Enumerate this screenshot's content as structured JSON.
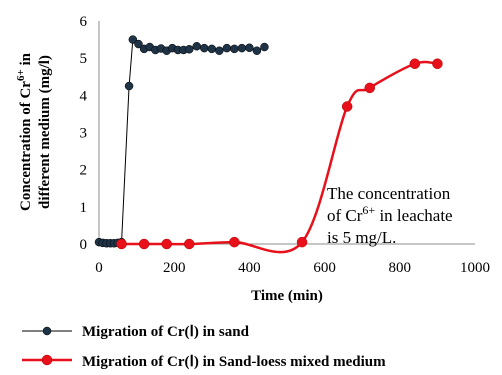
{
  "chart_data": {
    "type": "line",
    "xlabel": "Time (min)",
    "ylabel_line1": "Concentration of Cr",
    "ylabel_sup": "6+",
    "ylabel_line1_end": " in",
    "ylabel_line2": "different medium (mg/l)",
    "xlim": [
      0,
      1000
    ],
    "ylim": [
      0,
      6
    ],
    "x_ticks": [
      "0",
      "200",
      "400",
      "600",
      "800",
      "1000"
    ],
    "y_ticks": [
      "0",
      "1",
      "2",
      "3",
      "4",
      "5",
      "6"
    ],
    "grid": false,
    "legend_position": "bottom",
    "annotation": {
      "line1": "The concentration",
      "line2_pre": "of Cr",
      "line2_sup": "6+",
      "line2_post": " in leachate",
      "line3": "is 5 mg/L."
    },
    "series": [
      {
        "name": "Migration of Cr(Ⅰ) in sand",
        "color": "#000000",
        "marker_color": "#1f3347",
        "x": [
          0,
          10,
          20,
          30,
          40,
          50,
          60,
          80,
          90,
          105,
          120,
          135,
          150,
          165,
          180,
          195,
          210,
          225,
          240,
          260,
          280,
          300,
          320,
          340,
          360,
          380,
          400,
          420,
          440
        ],
        "y": [
          0.05,
          0.03,
          0.02,
          0.02,
          0.02,
          0.03,
          0.05,
          4.25,
          5.5,
          5.38,
          5.25,
          5.3,
          5.22,
          5.26,
          5.2,
          5.27,
          5.22,
          5.22,
          5.24,
          5.32,
          5.27,
          5.25,
          5.2,
          5.27,
          5.25,
          5.27,
          5.28,
          5.2,
          5.3
        ]
      },
      {
        "name": "Migration of Cr(Ⅰ) in Sand-loess mixed medium",
        "color": "#e8101a",
        "marker_color": "#e8101a",
        "x": [
          60,
          120,
          180,
          240,
          360,
          540,
          660,
          720,
          840,
          900
        ],
        "y": [
          0.0,
          0.0,
          0.0,
          0.0,
          0.05,
          0.05,
          3.7,
          4.2,
          4.85,
          4.85
        ]
      }
    ]
  }
}
